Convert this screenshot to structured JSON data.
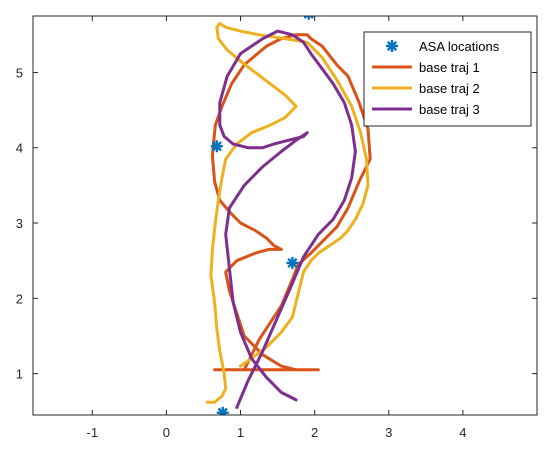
{
  "chart_data": {
    "type": "line",
    "title": "",
    "xlabel": "",
    "ylabel": "",
    "xlim": [
      -1.8,
      5.0
    ],
    "ylim": [
      0.45,
      5.75
    ],
    "xticks": [
      -1,
      0,
      1,
      2,
      3,
      4
    ],
    "yticks": [
      1,
      2,
      3,
      4,
      5
    ],
    "xtick_labels": [
      "-1",
      "0",
      "1",
      "2",
      "3",
      "4"
    ],
    "ytick_labels": [
      "1",
      "2",
      "3",
      "4",
      "5"
    ],
    "grid": false,
    "box": true,
    "legend_location": "top-right",
    "colors": {
      "asa": "#0072BD",
      "traj1": "#D95319",
      "traj2": "#EDB120",
      "traj3": "#7E2F8E",
      "axis": "#262626",
      "legend_border": "#262626"
    },
    "legend": [
      {
        "label": "ASA locations",
        "series": "asa",
        "marker": "asterisk"
      },
      {
        "label": "base traj 1",
        "series": "traj1",
        "marker": "line"
      },
      {
        "label": "base traj 2",
        "series": "traj2",
        "marker": "line"
      },
      {
        "label": "base traj 3",
        "series": "traj3",
        "marker": "line"
      }
    ],
    "series": [
      {
        "name": "ASA locations",
        "key": "asa",
        "style": "marker",
        "x": [
          1.92,
          0.68,
          1.7,
          0.76
        ],
        "y": [
          5.78,
          4.02,
          2.47,
          0.48
        ]
      },
      {
        "name": "base traj 1",
        "key": "traj1",
        "style": "line",
        "x": [
          1.05,
          1.25,
          1.55,
          1.7,
          1.78,
          1.95,
          2.1,
          2.3,
          2.45,
          2.6,
          2.75,
          2.72,
          2.6,
          2.45,
          2.3,
          2.1,
          1.95,
          1.9,
          1.75,
          1.55,
          1.35,
          1.05,
          0.88,
          0.75,
          0.66,
          0.62,
          0.65,
          0.72,
          0.85,
          1.0,
          1.2,
          1.35,
          1.45,
          1.55,
          1.38,
          1.2,
          0.95,
          0.8,
          0.85,
          0.95,
          1.05,
          1.3,
          1.55,
          1.75,
          1.85,
          1.95,
          2.05,
          1.9,
          1.5,
          1.2,
          0.95,
          0.68,
          0.65,
          0.8,
          0.9,
          0.95,
          1.3,
          1.55,
          1.7,
          1.55,
          1.4,
          1.5,
          1.7,
          1.85,
          1.95,
          2.05
        ],
        "y": [
          1.05,
          1.45,
          1.9,
          2.25,
          2.45,
          2.6,
          2.75,
          2.95,
          3.2,
          3.55,
          3.85,
          4.25,
          4.6,
          4.95,
          5.1,
          5.35,
          5.45,
          5.5,
          5.5,
          5.45,
          5.35,
          5.1,
          4.85,
          4.55,
          4.3,
          3.9,
          3.55,
          3.3,
          3.15,
          3.0,
          2.9,
          2.8,
          2.7,
          2.65,
          2.65,
          2.6,
          2.5,
          2.35,
          2.1,
          1.8,
          1.5,
          1.25,
          1.1,
          1.05,
          1.05,
          1.05,
          1.05,
          1.05,
          1.05,
          1.05,
          1.05,
          1.05,
          1.05,
          1.05,
          1.05,
          1.05,
          1.05,
          1.05,
          1.05,
          1.05,
          1.05,
          1.05,
          1.05,
          1.05,
          1.05,
          1.05
        ]
      },
      {
        "name": "base traj 2",
        "key": "traj2",
        "style": "line",
        "x": [
          0.55,
          0.65,
          0.75,
          0.8,
          0.78,
          0.72,
          0.68,
          0.65,
          0.6,
          0.62,
          0.66,
          0.7,
          0.75,
          0.8,
          0.95,
          1.15,
          1.4,
          1.6,
          1.75,
          1.6,
          1.4,
          1.2,
          1.0,
          0.82,
          0.7,
          0.68,
          0.72,
          0.8,
          1.0,
          1.25,
          1.6,
          1.9,
          2.1,
          2.3,
          2.5,
          2.62,
          2.7,
          2.72,
          2.65,
          2.55,
          2.45,
          2.35,
          2.2,
          2.05,
          1.95,
          1.85,
          1.8,
          1.75,
          1.7,
          1.55,
          1.35,
          1.15,
          1.0
        ],
        "y": [
          0.62,
          0.62,
          0.7,
          0.8,
          1.0,
          1.3,
          1.6,
          1.95,
          2.3,
          2.65,
          3.0,
          3.3,
          3.6,
          3.85,
          4.05,
          4.2,
          4.3,
          4.4,
          4.55,
          4.7,
          4.85,
          5.0,
          5.15,
          5.3,
          5.45,
          5.6,
          5.65,
          5.6,
          5.55,
          5.5,
          5.45,
          5.4,
          5.2,
          4.9,
          4.55,
          4.2,
          3.85,
          3.5,
          3.25,
          3.05,
          2.9,
          2.8,
          2.7,
          2.6,
          2.5,
          2.35,
          2.15,
          1.95,
          1.75,
          1.55,
          1.35,
          1.2,
          1.1
        ]
      },
      {
        "name": "base traj 3",
        "key": "traj3",
        "style": "line",
        "x": [
          0.95,
          1.1,
          1.3,
          1.5,
          1.7,
          1.85,
          2.05,
          2.25,
          2.4,
          2.5,
          2.55,
          2.5,
          2.4,
          2.25,
          2.1,
          1.95,
          1.85,
          1.7,
          1.5,
          1.3,
          1.0,
          0.82,
          0.72,
          0.72,
          0.78,
          0.9,
          1.1,
          1.3,
          1.45,
          1.65,
          1.85,
          1.9,
          1.75,
          1.55,
          1.3,
          1.05,
          0.85,
          0.8,
          0.85,
          0.9,
          1.0,
          1.15,
          1.35,
          1.55,
          1.75
        ],
        "y": [
          0.55,
          0.9,
          1.3,
          1.75,
          2.2,
          2.55,
          2.85,
          3.05,
          3.3,
          3.6,
          3.95,
          4.3,
          4.6,
          4.85,
          5.05,
          5.25,
          5.4,
          5.5,
          5.55,
          5.45,
          5.25,
          4.95,
          4.6,
          4.3,
          4.15,
          4.05,
          4.0,
          4.0,
          4.05,
          4.1,
          4.15,
          4.2,
          4.1,
          3.95,
          3.75,
          3.5,
          3.2,
          2.85,
          2.4,
          1.95,
          1.55,
          1.2,
          0.95,
          0.75,
          0.65
        ]
      }
    ]
  }
}
